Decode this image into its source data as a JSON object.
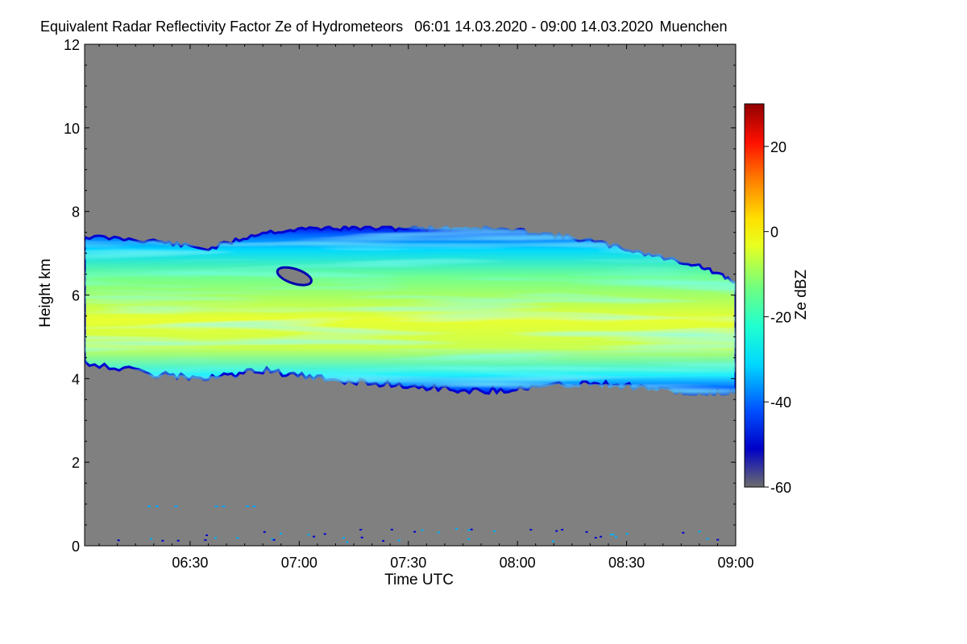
{
  "chart_data": {
    "type": "heatmap",
    "title": "Equivalent Radar Reflectivity Factor Ze of Hydrometeors",
    "time_range": "06:01 14.03.2020 - 09:00 14.03.2020",
    "location": "Muenchen",
    "xlabel": "Time UTC",
    "ylabel": "Height km",
    "colorbar_label": "Ze dBZ",
    "x_ticks": [
      "06:30",
      "07:00",
      "07:30",
      "08:00",
      "08:30",
      "09:00"
    ],
    "xlim": [
      "06:01",
      "09:00"
    ],
    "y_ticks": [
      "0",
      "2",
      "4",
      "6",
      "8",
      "10",
      "12"
    ],
    "ylim": [
      0,
      12
    ],
    "colorbar_ticks": [
      "-60",
      "-40",
      "-20",
      "0",
      "20"
    ],
    "colorbar_range": [
      -60,
      30
    ],
    "colormap": [
      "#6d6d6d",
      "#0000c8",
      "#0050ff",
      "#00d8ff",
      "#20ffd0",
      "#70ff80",
      "#e8ff20",
      "#ffe000",
      "#ff8000",
      "#ff1000",
      "#900000"
    ],
    "no_signal_color": "#808080",
    "cloud_layer": {
      "x": [
        "06:01",
        "06:20",
        "06:35",
        "06:50",
        "07:05",
        "07:20",
        "07:35",
        "07:50",
        "08:05",
        "08:20",
        "08:35",
        "08:50",
        "09:00"
      ],
      "top_km": [
        7.4,
        7.3,
        7.1,
        7.5,
        7.6,
        7.6,
        7.6,
        7.6,
        7.5,
        7.3,
        7.0,
        6.7,
        6.3
      ],
      "base_km": [
        4.4,
        4.1,
        4.0,
        4.2,
        4.0,
        3.9,
        3.8,
        3.7,
        3.8,
        3.9,
        3.8,
        3.6,
        3.7
      ]
    }
  }
}
